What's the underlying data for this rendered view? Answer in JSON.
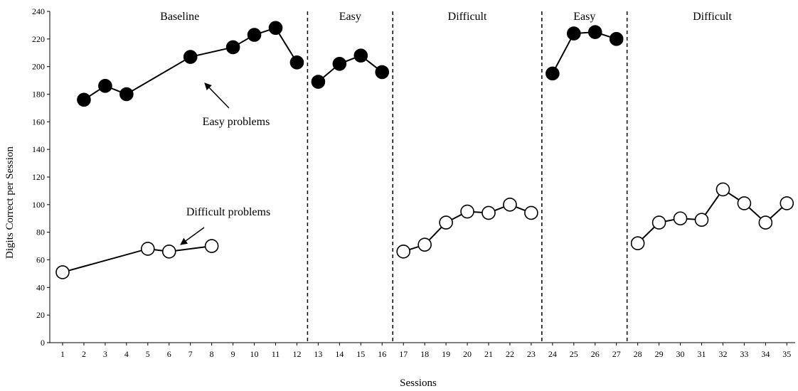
{
  "chart_data": {
    "type": "line",
    "xlabel": "Sessions",
    "ylabel": "Digits Correct per Session",
    "ylim": [
      0,
      240
    ],
    "yticks": [
      0,
      20,
      40,
      60,
      80,
      100,
      120,
      140,
      160,
      180,
      200,
      220,
      240
    ],
    "xticks": [
      1,
      2,
      3,
      4,
      5,
      6,
      7,
      8,
      9,
      10,
      11,
      12,
      13,
      14,
      15,
      16,
      17,
      18,
      19,
      20,
      21,
      22,
      23,
      24,
      25,
      26,
      27,
      28,
      29,
      30,
      31,
      32,
      33,
      34,
      35
    ],
    "grid": false,
    "phases": [
      {
        "label": "Baseline",
        "start": 1,
        "end": 12
      },
      {
        "label": "Easy",
        "start": 13,
        "end": 16
      },
      {
        "label": "Difficult",
        "start": 17,
        "end": 23
      },
      {
        "label": "Easy",
        "start": 24,
        "end": 27
      },
      {
        "label": "Difficult",
        "start": 28,
        "end": 35
      }
    ],
    "phase_change_lines": [
      12.5,
      16.5,
      23.5,
      27.5
    ],
    "series": [
      {
        "name": "Easy problems",
        "marker": "filled-circle",
        "color": "#000000",
        "segments": [
          [
            [
              2,
              176
            ],
            [
              3,
              186
            ],
            [
              4,
              180
            ],
            [
              7,
              207
            ],
            [
              9,
              214
            ],
            [
              10,
              223
            ],
            [
              11,
              228
            ],
            [
              12,
              203
            ]
          ],
          [
            [
              13,
              189
            ],
            [
              14,
              202
            ],
            [
              15,
              208
            ],
            [
              16,
              196
            ]
          ],
          [
            [
              24,
              195
            ],
            [
              25,
              224
            ],
            [
              26,
              225
            ],
            [
              27,
              220
            ]
          ]
        ]
      },
      {
        "name": "Difficult problems",
        "marker": "open-circle",
        "color": "#000000",
        "segments": [
          [
            [
              1,
              51
            ],
            [
              5,
              68
            ],
            [
              6,
              66
            ],
            [
              8,
              70
            ]
          ],
          [
            [
              17,
              66
            ],
            [
              18,
              71
            ],
            [
              19,
              87
            ],
            [
              20,
              95
            ],
            [
              21,
              94
            ],
            [
              22,
              100
            ],
            [
              23,
              94
            ]
          ],
          [
            [
              28,
              72
            ],
            [
              29,
              87
            ],
            [
              30,
              90
            ],
            [
              31,
              89
            ],
            [
              32,
              111
            ],
            [
              33,
              101
            ],
            [
              34,
              87
            ],
            [
              35,
              101
            ]
          ]
        ]
      }
    ],
    "annotations": [
      {
        "text": "Easy problems",
        "points_to_session": 7,
        "points_to_value": 207
      },
      {
        "text": "Difficult problems",
        "points_to_session": 6,
        "points_to_value": 66
      }
    ]
  }
}
